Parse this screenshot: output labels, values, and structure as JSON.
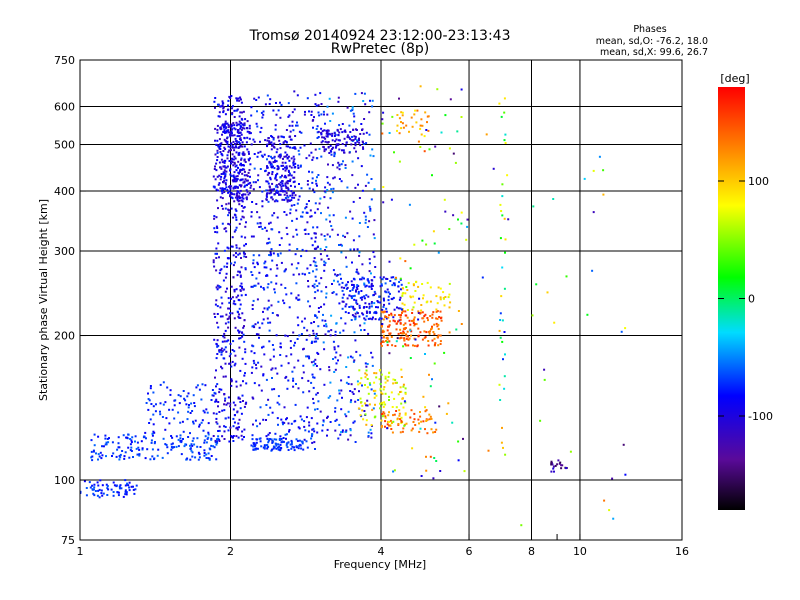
{
  "chart_data": {
    "type": "scatter",
    "title": "Tromsø 20140924 23:12:00-23:13:43",
    "subtitle": "RwPretec (8p)",
    "xlabel": "Frequency [MHz]",
    "ylabel": "Stationary phase Virtual Height [km]",
    "x_scale": "log",
    "y_scale": "log",
    "xlim": [
      1,
      16
    ],
    "ylim": [
      75,
      750
    ],
    "x_ticks": [
      1,
      2,
      4,
      6,
      8,
      10,
      16
    ],
    "x_tick_labels": [
      "1",
      "2",
      "4",
      "6",
      "8",
      "10",
      "16"
    ],
    "x_minor_ticks": [
      9
    ],
    "y_ticks": [
      75,
      100,
      200,
      300,
      400,
      500,
      600,
      750
    ],
    "y_tick_labels": [
      "75",
      "100",
      "200",
      "300",
      "400",
      "500",
      "600",
      "750"
    ],
    "grid": true,
    "phases_box": {
      "title": "Phases",
      "line1": "mean, sd,O: -76.2, 18.0",
      "line2": "mean, sd,X:  99.6, 26.7"
    },
    "colorbar": {
      "label": "[deg]",
      "range": [
        -180,
        180
      ],
      "ticks": [
        100,
        0,
        -100
      ],
      "tick_labels": [
        "100",
        "0",
        "-100"
      ]
    },
    "clusters": [
      {
        "f": [
          1.0,
          1.3
        ],
        "h": [
          92,
          100
        ],
        "phase": [
          -90,
          -60
        ],
        "n": 70
      },
      {
        "f": [
          1.05,
          1.9
        ],
        "h": [
          110,
          125
        ],
        "phase": [
          -85,
          -55
        ],
        "n": 180
      },
      {
        "f": [
          1.35,
          1.9
        ],
        "h": [
          125,
          160
        ],
        "phase": [
          -90,
          -60
        ],
        "n": 90
      },
      {
        "f": [
          1.85,
          2.15
        ],
        "h": [
          120,
          640
        ],
        "phase": [
          -120,
          -70
        ],
        "n": 520
      },
      {
        "f": [
          1.9,
          2.2
        ],
        "h": [
          380,
          560
        ],
        "phase": [
          -120,
          -80
        ],
        "n": 260
      },
      {
        "f": [
          2.35,
          2.7
        ],
        "h": [
          380,
          520
        ],
        "phase": [
          -120,
          -80
        ],
        "n": 200
      },
      {
        "f": [
          2.2,
          3.0
        ],
        "h": [
          115,
          650
        ],
        "phase": [
          -110,
          -60
        ],
        "n": 520
      },
      {
        "f": [
          2.2,
          2.8
        ],
        "h": [
          115,
          122
        ],
        "phase": [
          -80,
          -60
        ],
        "n": 90
      },
      {
        "f": [
          2.9,
          3.9
        ],
        "h": [
          120,
          650
        ],
        "phase": [
          -120,
          -40
        ],
        "n": 420
      },
      {
        "f": [
          3.0,
          3.7
        ],
        "h": [
          480,
          540
        ],
        "phase": [
          -120,
          -90
        ],
        "n": 100
      },
      {
        "f": [
          3.3,
          4.4
        ],
        "h": [
          215,
          265
        ],
        "phase": [
          -110,
          -60
        ],
        "n": 170
      },
      {
        "f": [
          3.6,
          4.5
        ],
        "h": [
          130,
          170
        ],
        "phase": [
          40,
          120
        ],
        "n": 110
      },
      {
        "f": [
          4.0,
          5.3
        ],
        "h": [
          190,
          225
        ],
        "phase": [
          120,
          170
        ],
        "n": 170
      },
      {
        "f": [
          4.4,
          5.5
        ],
        "h": [
          225,
          260
        ],
        "phase": [
          60,
          110
        ],
        "n": 50
      },
      {
        "f": [
          4.0,
          5.2
        ],
        "h": [
          125,
          140
        ],
        "phase": [
          110,
          160
        ],
        "n": 60
      },
      {
        "f": [
          4.3,
          5.0
        ],
        "h": [
          520,
          600
        ],
        "phase": [
          80,
          140
        ],
        "n": 30
      },
      {
        "f": [
          4.0,
          6.0
        ],
        "h": [
          100,
          680
        ],
        "phase": [
          -150,
          150
        ],
        "n": 110
      },
      {
        "f": [
          6.9,
          7.1
        ],
        "h": [
          110,
          650
        ],
        "phase": [
          -80,
          120
        ],
        "n": 35
      },
      {
        "f": [
          8.7,
          9.5
        ],
        "h": [
          104,
          110
        ],
        "phase": [
          -160,
          -100
        ],
        "n": 20
      },
      {
        "f": [
          6.0,
          13.0
        ],
        "h": [
          80,
          620
        ],
        "phase": [
          -150,
          150
        ],
        "n": 35
      }
    ]
  }
}
